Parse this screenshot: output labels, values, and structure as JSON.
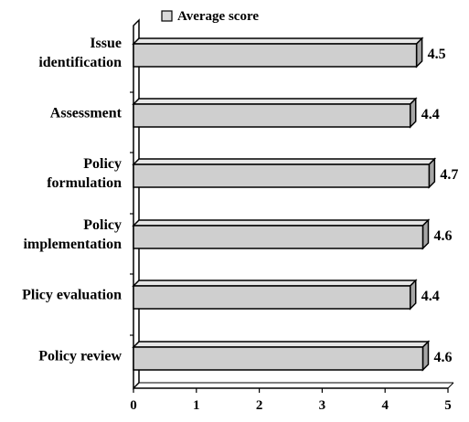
{
  "chart_data": {
    "type": "bar",
    "orientation": "horizontal",
    "style": "3d",
    "categories": [
      [
        "Issue",
        "identification"
      ],
      [
        "Assessment"
      ],
      [
        "Policy",
        "formulation"
      ],
      [
        "Policy",
        "implementation"
      ],
      [
        "Plicy evaluation"
      ],
      [
        "Policy review"
      ]
    ],
    "series": [
      {
        "name": "Average score",
        "values": [
          4.5,
          4.4,
          4.7,
          4.6,
          4.4,
          4.6
        ]
      }
    ],
    "value_labels": [
      "4.5",
      "4.4",
      "4.7",
      "4.6",
      "4.4",
      "4.6"
    ],
    "xlim": [
      0,
      5
    ],
    "xticks": [
      "0",
      "1",
      "2",
      "3",
      "4",
      "5"
    ],
    "legend_position": "top",
    "grid": false,
    "colors": {
      "bar_front": "#cfcfcf",
      "bar_top": "#e6e6e6",
      "bar_side": "#a6a6a6",
      "outline": "#000000"
    }
  }
}
